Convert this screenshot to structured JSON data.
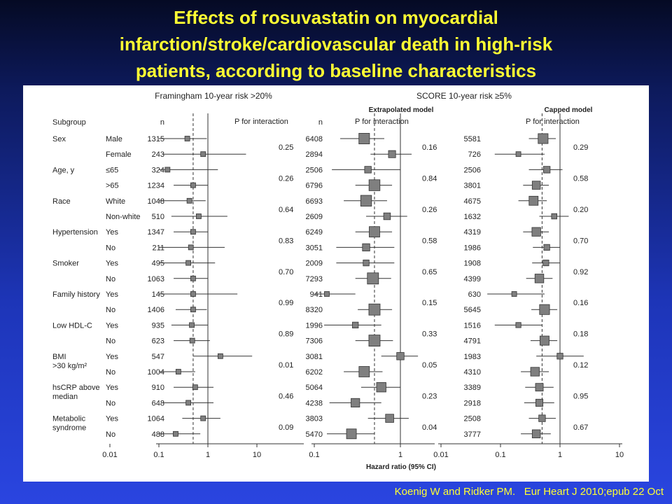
{
  "slide": {
    "title_lines": [
      "Effects of rosuvastatin on myocardial",
      "infarction/stroke/cardiovascular death in high-risk",
      "patients, according to baseline characteristics"
    ],
    "citation": "Koenig W and Ridker PM.   Eur Heart J 2010;epub 22 Oct"
  },
  "chart_data": {
    "type": "forest",
    "panel_titles": {
      "framingham": "Framingham 10-year risk >20%",
      "score": "SCORE 10-year risk ≥5%"
    },
    "subpanel_titles": {
      "extrapolated": "Extrapolated model",
      "capped": "Capped model"
    },
    "column_headers": {
      "subgroup": "Subgroup",
      "n": "n",
      "p": "P for interaction"
    },
    "xlabel": "Hazard ratio (95% CI)",
    "axes": {
      "framingham": {
        "ticks": [
          "0.01",
          "0.1",
          "1",
          "10"
        ]
      },
      "extrapolated": {
        "ticks": [
          "0.1",
          "1"
        ]
      },
      "capped": {
        "ticks": [
          "0.01",
          "0.1",
          "1",
          "10"
        ]
      }
    },
    "rows": [
      {
        "group": "Sex",
        "sub": "Male",
        "fr": {
          "n": "1315",
          "hr": 0.38,
          "lo": 0.08,
          "hi": 0.95
        },
        "ex": {
          "n": "6408",
          "hr": 0.38,
          "lo": 0.2,
          "hi": 0.65
        },
        "ca": {
          "n": "5581",
          "hr": 0.52,
          "lo": 0.3,
          "hi": 0.85
        }
      },
      {
        "group": "",
        "sub": "Female",
        "fr": {
          "n": "243",
          "hr": 0.8,
          "lo": 0.12,
          "hi": 6.0,
          "p": "0.25"
        },
        "ex": {
          "n": "2894",
          "hr": 0.8,
          "lo": 0.45,
          "hi": 1.35,
          "p": "0.16"
        },
        "ca": {
          "n": "726",
          "hr": 0.2,
          "lo": 0.08,
          "hi": 0.55,
          "p": "0.29"
        }
      },
      {
        "group": "Age, y",
        "sub": "≤65",
        "fr": {
          "n": "324",
          "hr": 0.15,
          "lo": 0.013,
          "hi": 1.6
        },
        "ex": {
          "n": "2506",
          "hr": 0.42,
          "lo": 0.16,
          "hi": 1.0
        },
        "ca": {
          "n": "2506",
          "hr": 0.6,
          "lo": 0.3,
          "hi": 1.1
        }
      },
      {
        "group": "",
        "sub": ">65",
        "fr": {
          "n": "1234",
          "hr": 0.5,
          "lo": 0.2,
          "hi": 1.0,
          "p": "0.26"
        },
        "ex": {
          "n": "6796",
          "hr": 0.5,
          "lo": 0.3,
          "hi": 0.8,
          "p": "0.84"
        },
        "ca": {
          "n": "3801",
          "hr": 0.4,
          "lo": 0.24,
          "hi": 0.65,
          "p": "0.58"
        }
      },
      {
        "group": "Race",
        "sub": "White",
        "fr": {
          "n": "1048",
          "hr": 0.42,
          "lo": 0.1,
          "hi": 0.9
        },
        "ex": {
          "n": "6693",
          "hr": 0.4,
          "lo": 0.22,
          "hi": 0.7
        },
        "ca": {
          "n": "4675",
          "hr": 0.36,
          "lo": 0.2,
          "hi": 0.6
        }
      },
      {
        "group": "",
        "sub": "Non-white",
        "fr": {
          "n": "510",
          "hr": 0.65,
          "lo": 0.18,
          "hi": 2.5,
          "p": "0.64"
        },
        "ex": {
          "n": "2609",
          "hr": 0.7,
          "lo": 0.4,
          "hi": 1.2,
          "p": "0.26"
        },
        "ca": {
          "n": "1632",
          "hr": 0.8,
          "lo": 0.45,
          "hi": 1.4,
          "p": "0.20"
        }
      },
      {
        "group": "Hypertension",
        "sub": "Yes",
        "fr": {
          "n": "1347",
          "hr": 0.5,
          "lo": 0.2,
          "hi": 1.0
        },
        "ex": {
          "n": "6249",
          "hr": 0.5,
          "lo": 0.3,
          "hi": 0.8
        },
        "ca": {
          "n": "4319",
          "hr": 0.4,
          "lo": 0.24,
          "hi": 0.65
        }
      },
      {
        "group": "",
        "sub": "No",
        "fr": {
          "n": "211",
          "hr": 0.45,
          "lo": 0.06,
          "hi": 2.2,
          "p": "0.83"
        },
        "ex": {
          "n": "3051",
          "hr": 0.4,
          "lo": 0.18,
          "hi": 0.85,
          "p": "0.58"
        },
        "ca": {
          "n": "1986",
          "hr": 0.6,
          "lo": 0.35,
          "hi": 1.0,
          "p": "0.70"
        }
      },
      {
        "group": "Smoker",
        "sub": "Yes",
        "fr": {
          "n": "495",
          "hr": 0.4,
          "lo": 0.1,
          "hi": 1.4
        },
        "ex": {
          "n": "2009",
          "hr": 0.4,
          "lo": 0.18,
          "hi": 0.85
        },
        "ca": {
          "n": "1908",
          "hr": 0.58,
          "lo": 0.34,
          "hi": 1.0
        }
      },
      {
        "group": "",
        "sub": "No",
        "fr": {
          "n": "1063",
          "hr": 0.5,
          "lo": 0.2,
          "hi": 1.0,
          "p": "0.70"
        },
        "ex": {
          "n": "7293",
          "hr": 0.48,
          "lo": 0.3,
          "hi": 0.78,
          "p": "0.65"
        },
        "ca": {
          "n": "4399",
          "hr": 0.45,
          "lo": 0.27,
          "hi": 0.75,
          "p": "0.92"
        }
      },
      {
        "group": "Family history",
        "sub": "Yes",
        "fr": {
          "n": "145",
          "hr": 0.5,
          "lo": 0.04,
          "hi": 4.0
        },
        "ex": {
          "n": "941",
          "hr": 0.14,
          "lo": 0.07,
          "hi": 0.3
        },
        "ca": {
          "n": "630",
          "hr": 0.17,
          "lo": 0.06,
          "hi": 0.55
        }
      },
      {
        "group": "",
        "sub": "No",
        "fr": {
          "n": "1406",
          "hr": 0.5,
          "lo": 0.22,
          "hi": 0.95,
          "p": "0.99"
        },
        "ex": {
          "n": "8320",
          "hr": 0.5,
          "lo": 0.32,
          "hi": 0.8,
          "p": "0.15"
        },
        "ca": {
          "n": "5645",
          "hr": 0.55,
          "lo": 0.33,
          "hi": 0.9,
          "p": "0.16"
        }
      },
      {
        "group": "Low HDL-C",
        "sub": "Yes",
        "fr": {
          "n": "935",
          "hr": 0.47,
          "lo": 0.18,
          "hi": 1.0
        },
        "ex": {
          "n": "1996",
          "hr": 0.3,
          "lo": 0.13,
          "hi": 0.6
        },
        "ca": {
          "n": "1516",
          "hr": 0.2,
          "lo": 0.08,
          "hi": 0.5
        }
      },
      {
        "group": "",
        "sub": "No",
        "fr": {
          "n": "623",
          "hr": 0.48,
          "lo": 0.2,
          "hi": 1.1,
          "p": "0.89"
        },
        "ex": {
          "n": "7306",
          "hr": 0.5,
          "lo": 0.3,
          "hi": 0.82,
          "p": "0.33"
        },
        "ca": {
          "n": "4791",
          "hr": 0.55,
          "lo": 0.32,
          "hi": 0.9,
          "p": "0.18"
        }
      },
      {
        "group": "BMI",
        "group2": ">30 kg/m²",
        "sub": "Yes",
        "fr": {
          "n": "547",
          "hr": 1.8,
          "lo": 0.5,
          "hi": 8.0
        },
        "ex": {
          "n": "3081",
          "hr": 1.0,
          "lo": 0.6,
          "hi": 1.6
        },
        "ca": {
          "n": "1983",
          "hr": 1.0,
          "lo": 0.4,
          "hi": 2.5
        }
      },
      {
        "group": "",
        "sub": "No",
        "fr": {
          "n": "1004",
          "hr": 0.25,
          "lo": 0.1,
          "hi": 0.55,
          "p": "0.01"
        },
        "ex": {
          "n": "6202",
          "hr": 0.38,
          "lo": 0.22,
          "hi": 0.62,
          "p": "0.05"
        },
        "ca": {
          "n": "4310",
          "hr": 0.38,
          "lo": 0.22,
          "hi": 0.65,
          "p": "0.12"
        }
      },
      {
        "group": "hsCRP above",
        "group2": "median",
        "sub": "Yes",
        "fr": {
          "n": "910",
          "hr": 0.55,
          "lo": 0.2,
          "hi": 1.3
        },
        "ex": {
          "n": "5064",
          "hr": 0.6,
          "lo": 0.35,
          "hi": 1.0
        },
        "ca": {
          "n": "3389",
          "hr": 0.45,
          "lo": 0.26,
          "hi": 0.78
        }
      },
      {
        "group": "",
        "sub": "No",
        "fr": {
          "n": "648",
          "hr": 0.4,
          "lo": 0.12,
          "hi": 1.3,
          "p": "0.46"
        },
        "ex": {
          "n": "4238",
          "hr": 0.3,
          "lo": 0.15,
          "hi": 0.6,
          "p": "0.23"
        },
        "ca": {
          "n": "2918",
          "hr": 0.45,
          "lo": 0.25,
          "hi": 0.8,
          "p": "0.95"
        }
      },
      {
        "group": "Metabolic",
        "group2": "syndrome",
        "sub": "Yes",
        "fr": {
          "n": "1064",
          "hr": 0.8,
          "lo": 0.3,
          "hi": 1.8
        },
        "ex": {
          "n": "3803",
          "hr": 0.75,
          "lo": 0.42,
          "hi": 1.25
        },
        "ca": {
          "n": "2508",
          "hr": 0.5,
          "lo": 0.3,
          "hi": 0.85
        }
      },
      {
        "group": "",
        "sub": "No",
        "fr": {
          "n": "488",
          "hr": 0.22,
          "lo": 0.06,
          "hi": 0.7,
          "p": "0.09"
        },
        "ex": {
          "n": "5470",
          "hr": 0.27,
          "lo": 0.14,
          "hi": 0.5,
          "p": "0.04"
        },
        "ca": {
          "n": "3777",
          "hr": 0.4,
          "lo": 0.22,
          "hi": 0.7,
          "p": "0.67"
        }
      }
    ]
  }
}
